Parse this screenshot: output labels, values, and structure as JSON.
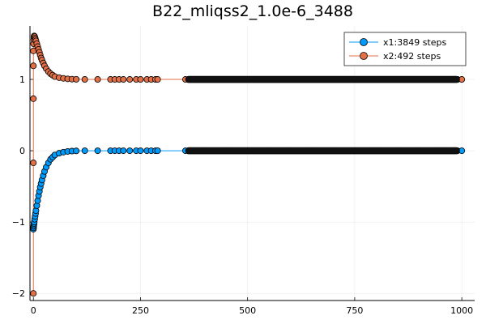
{
  "chart_data": {
    "type": "scatter",
    "title": "B22_mliqss2_1.0e-6_3488",
    "xlabel": "",
    "ylabel": "",
    "xlim": [
      -8,
      1030
    ],
    "ylim": [
      -2.1,
      1.75
    ],
    "x_ticks": [
      0,
      250,
      500,
      750,
      1000
    ],
    "x_tick_labels": [
      "0",
      "250",
      "500",
      "750",
      "1000"
    ],
    "y_ticks": [
      -2,
      -1,
      0,
      1
    ],
    "y_tick_labels": [
      "−2",
      "−1",
      "0",
      "1"
    ],
    "grid": true,
    "legend_position": "top-right",
    "series": [
      {
        "name": "x1:3849 steps",
        "color": "#009AFA",
        "points": [
          [
            0,
            -1.1
          ],
          [
            0.3,
            -1.08
          ],
          [
            0.6,
            -1.06
          ],
          [
            1,
            -1.04
          ],
          [
            1.5,
            -1.02
          ],
          [
            2,
            -1.0
          ],
          [
            3,
            -0.96
          ],
          [
            4,
            -0.92
          ],
          [
            5,
            -0.88
          ],
          [
            6,
            -0.84
          ],
          [
            8,
            -0.77
          ],
          [
            10,
            -0.7
          ],
          [
            12,
            -0.63
          ],
          [
            14,
            -0.57
          ],
          [
            16,
            -0.51
          ],
          [
            18,
            -0.46
          ],
          [
            20,
            -0.41
          ],
          [
            23,
            -0.35
          ],
          [
            26,
            -0.29
          ],
          [
            30,
            -0.23
          ],
          [
            35,
            -0.17
          ],
          [
            40,
            -0.12
          ],
          [
            45,
            -0.09
          ],
          [
            50,
            -0.06
          ],
          [
            60,
            -0.035
          ],
          [
            70,
            -0.02
          ],
          [
            80,
            -0.01
          ],
          [
            90,
            -0.005
          ],
          [
            100,
            -0.002
          ],
          [
            120,
            0
          ],
          [
            150,
            0
          ],
          [
            180,
            0
          ],
          [
            190,
            0
          ],
          [
            200,
            0
          ],
          [
            210,
            0
          ],
          [
            225,
            0
          ],
          [
            240,
            0
          ],
          [
            250,
            0
          ],
          [
            265,
            0
          ],
          [
            275,
            0
          ],
          [
            285,
            0
          ],
          [
            290,
            0
          ],
          [
            355,
            0
          ],
          [
            400,
            0
          ],
          [
            450,
            0
          ],
          [
            500,
            0
          ],
          [
            550,
            0
          ],
          [
            600,
            0
          ],
          [
            650,
            0
          ],
          [
            700,
            0
          ],
          [
            750,
            0
          ],
          [
            800,
            0
          ],
          [
            850,
            0
          ],
          [
            900,
            0
          ],
          [
            950,
            0
          ],
          [
            990,
            0
          ],
          [
            1000,
            0
          ]
        ]
      },
      {
        "name": "x2:492 steps",
        "color": "#E26F46",
        "points": [
          [
            0,
            -2.0
          ],
          [
            0,
            -0.17
          ],
          [
            0,
            0.73
          ],
          [
            0,
            1.19
          ],
          [
            0,
            1.4
          ],
          [
            0.5,
            1.5
          ],
          [
            1,
            1.56
          ],
          [
            1.5,
            1.6
          ],
          [
            2,
            1.61
          ],
          [
            3,
            1.6
          ],
          [
            4,
            1.58
          ],
          [
            5,
            1.56
          ],
          [
            6,
            1.54
          ],
          [
            8,
            1.5
          ],
          [
            10,
            1.46
          ],
          [
            12,
            1.42
          ],
          [
            14,
            1.38
          ],
          [
            16,
            1.34
          ],
          [
            18,
            1.3
          ],
          [
            20,
            1.27
          ],
          [
            23,
            1.23
          ],
          [
            26,
            1.19
          ],
          [
            30,
            1.15
          ],
          [
            35,
            1.11
          ],
          [
            40,
            1.08
          ],
          [
            45,
            1.06
          ],
          [
            50,
            1.04
          ],
          [
            60,
            1.025
          ],
          [
            70,
            1.015
          ],
          [
            80,
            1.008
          ],
          [
            90,
            1.004
          ],
          [
            100,
            1.002
          ],
          [
            120,
            1.0
          ],
          [
            150,
            1.0
          ],
          [
            180,
            1.0
          ],
          [
            190,
            1.0
          ],
          [
            200,
            1.0
          ],
          [
            210,
            1.0
          ],
          [
            225,
            1.0
          ],
          [
            240,
            1.0
          ],
          [
            250,
            1.0
          ],
          [
            265,
            1.0
          ],
          [
            275,
            1.0
          ],
          [
            285,
            1.0
          ],
          [
            290,
            1.0
          ],
          [
            355,
            1.0
          ],
          [
            400,
            1.0
          ],
          [
            450,
            1.0
          ],
          [
            500,
            1.0
          ],
          [
            550,
            1.0
          ],
          [
            600,
            1.0
          ],
          [
            650,
            1.0
          ],
          [
            700,
            1.0
          ],
          [
            750,
            1.0
          ],
          [
            800,
            1.0
          ],
          [
            850,
            1.0
          ],
          [
            900,
            1.0
          ],
          [
            950,
            1.0
          ],
          [
            990,
            1.0
          ],
          [
            1000,
            1.0
          ]
        ]
      }
    ]
  }
}
